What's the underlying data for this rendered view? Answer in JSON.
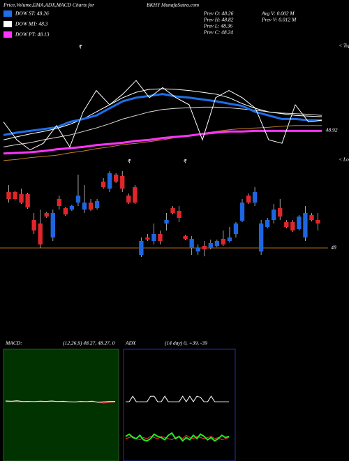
{
  "header": {
    "title": "Price,Volume,EMA,ADX,MACD Charts for",
    "symbol": "BKHY MunafaSutra.com"
  },
  "legend": [
    {
      "label": "DOW ST: 48.26",
      "color": "#1e6fe8"
    },
    {
      "label": "DOW MT: 48.3",
      "color": "#ffffff"
    },
    {
      "label": "DOW PT: 48.13",
      "color": "#ff33ff"
    }
  ],
  "prev_stats": [
    "Prev  O: 48.26",
    "Prev  H: 48.82",
    "Prev  L: 48.36",
    "Prev  C: 48.24",
    "Avg  V: 0.002  M",
    "Prev  V: 0.012  M"
  ],
  "chart_data": [
    {
      "type": "line",
      "annotations": [
        "₹",
        "< Tops"
      ],
      "ylim": [
        48.35,
        50.35
      ],
      "yticks": [
        {
          "value": 48.92,
          "label": "48.92"
        }
      ],
      "series": [
        {
          "color": "#c08020",
          "values": [
            48.41,
            48.43,
            48.46,
            48.48,
            48.5,
            48.54,
            48.57,
            48.61,
            48.64,
            48.68,
            48.7,
            48.73,
            48.76,
            48.8,
            48.83,
            48.87,
            48.9,
            48.93,
            48.95,
            48.96,
            48.97,
            48.99,
            49.0,
            49.0,
            49.0
          ]
        },
        {
          "color": "#ff33ff",
          "values": [
            48.53,
            48.54,
            48.55,
            48.57,
            48.6,
            48.62,
            48.64,
            48.67,
            48.69,
            48.71,
            48.74,
            48.76,
            48.79,
            48.81,
            48.83,
            48.86,
            48.88,
            48.9,
            48.9,
            48.91,
            48.91,
            48.91,
            48.91,
            48.91,
            48.91
          ]
        },
        {
          "color": "#dddddd",
          "values": [
            48.64,
            48.68,
            48.71,
            48.76,
            48.8,
            48.84,
            48.9,
            48.96,
            49.03,
            49.11,
            49.17,
            49.23,
            49.27,
            49.29,
            49.3,
            49.31,
            49.31,
            49.3,
            49.28,
            49.26,
            49.23,
            49.21,
            49.2,
            49.19,
            49.17
          ]
        },
        {
          "color": "#ffffff",
          "values": [
            48.76,
            48.81,
            48.86,
            48.9,
            48.95,
            49.02,
            49.11,
            49.23,
            49.35,
            49.47,
            49.56,
            49.61,
            49.62,
            49.61,
            49.59,
            49.56,
            49.53,
            49.47,
            49.37,
            49.29,
            49.23,
            49.2,
            49.17,
            49.16,
            49.15
          ]
        },
        {
          "color": "#1e6fe8",
          "values": [
            48.84,
            48.88,
            48.91,
            48.94,
            48.97,
            49.06,
            49.11,
            49.17,
            49.29,
            49.41,
            49.47,
            49.5,
            49.53,
            49.49,
            49.47,
            49.44,
            49.41,
            49.37,
            49.33,
            49.23,
            49.17,
            49.11,
            49.11,
            49.09,
            49.09
          ]
        },
        {
          "color": "#ffffff",
          "values": [
            49.06,
            48.76,
            48.59,
            48.7,
            49.0,
            48.64,
            49.23,
            49.59,
            49.35,
            49.53,
            49.76,
            49.47,
            49.64,
            49.47,
            49.35,
            48.76,
            49.47,
            49.59,
            49.47,
            49.29,
            48.76,
            48.7,
            49.35,
            49.06,
            49.09
          ]
        }
      ]
    },
    {
      "type": "candlestick",
      "annotations": [
        "₹",
        "₹",
        "< Lows"
      ],
      "ylim": [
        47.8,
        49.1
      ],
      "yticks": [
        48
      ],
      "grid_color": "#b06a10",
      "up_color": "#1e66e0",
      "down_color": "#e0262b",
      "open": [
        48.8,
        48.8,
        48.77,
        48.77,
        48.4,
        48.35,
        48.5,
        48.15,
        48.7,
        48.57,
        48.55,
        48.65,
        48.55,
        48.65,
        48.57,
        48.95,
        48.85,
        49.05,
        49.03,
        48.75,
        48.87,
        47.9,
        48.15,
        48.1,
        48.2,
        48.35,
        48.57,
        48.53,
        48.17,
        48.0,
        47.95,
        48.03,
        48.0,
        48.03,
        48.13,
        48.1,
        48.2,
        48.39,
        48.75,
        48.65,
        47.95,
        48.3,
        48.4,
        48.57,
        48.37,
        48.37,
        48.27,
        48.15,
        48.47,
        48.4
      ],
      "high": [
        48.9,
        48.82,
        48.85,
        48.79,
        48.5,
        48.55,
        48.52,
        48.55,
        48.75,
        48.59,
        48.62,
        49.05,
        48.9,
        48.7,
        48.7,
        49.0,
        49.1,
        49.07,
        49.1,
        48.78,
        48.9,
        48.15,
        48.2,
        48.35,
        48.25,
        48.5,
        48.6,
        48.6,
        48.19,
        48.17,
        48.05,
        48.1,
        48.12,
        48.12,
        48.25,
        48.3,
        48.37,
        48.7,
        48.78,
        48.87,
        48.4,
        48.43,
        48.63,
        48.7,
        48.4,
        48.4,
        48.47,
        48.6,
        48.5,
        48.5
      ],
      "low": [
        48.65,
        48.68,
        48.63,
        48.56,
        48.2,
        48.0,
        48.43,
        48.1,
        48.55,
        48.46,
        48.53,
        48.6,
        48.5,
        48.53,
        48.55,
        48.85,
        48.8,
        48.93,
        48.8,
        48.63,
        48.63,
        47.87,
        48.1,
        48.05,
        48.05,
        48.25,
        48.48,
        48.37,
        48.11,
        47.9,
        47.9,
        47.88,
        47.98,
        48.01,
        48.03,
        48.08,
        48.15,
        48.37,
        48.63,
        48.6,
        47.9,
        48.28,
        48.35,
        48.4,
        48.28,
        48.23,
        48.25,
        48.1,
        48.38,
        48.25
      ],
      "close": [
        48.7,
        48.7,
        48.65,
        48.58,
        48.25,
        48.05,
        48.45,
        48.5,
        48.6,
        48.48,
        48.6,
        48.75,
        48.65,
        48.55,
        48.67,
        48.87,
        49.07,
        48.95,
        48.85,
        48.65,
        48.65,
        48.1,
        48.12,
        48.2,
        48.1,
        48.4,
        48.5,
        48.43,
        48.13,
        48.13,
        48.0,
        47.98,
        48.07,
        48.1,
        48.05,
        48.15,
        48.35,
        48.65,
        48.65,
        48.8,
        48.35,
        48.4,
        48.55,
        48.45,
        48.3,
        48.25,
        48.45,
        48.5,
        48.4,
        48.35
      ]
    },
    {
      "type": "line",
      "title": "MACD:",
      "subtitle": "(12,26,9) 48.27, 48.27, 0",
      "ylim": [
        44,
        52
      ],
      "series": [
        {
          "color": "#ff4444",
          "values": [
            48.25,
            48.26,
            48.25,
            48.24,
            48.25,
            48.26,
            48.26,
            48.25,
            48.27,
            48.26,
            48.25,
            48.24,
            48.23,
            48.24,
            48.24,
            48.25,
            48.22,
            48.15,
            48.2,
            48.22
          ]
        },
        {
          "color": "#ffffff",
          "values": [
            48.3,
            48.28,
            48.31,
            48.26,
            48.27,
            48.25,
            48.29,
            48.27,
            48.3,
            48.26,
            48.28,
            48.24,
            48.22,
            48.27,
            48.25,
            48.29,
            48.2,
            48.24,
            48.27,
            48.27
          ]
        }
      ]
    },
    {
      "type": "line",
      "title": "ADX",
      "subtitle": "(14  day) 0, +39, -39",
      "ylim": [
        0,
        100
      ],
      "series": [
        {
          "color": "#ffffff",
          "values": [
            53,
            53,
            58,
            53,
            53,
            53,
            53,
            58,
            58,
            53,
            53,
            58,
            53,
            53,
            53,
            53,
            58,
            53,
            58,
            53,
            58,
            57,
            53,
            53,
            58,
            53,
            53,
            53,
            53,
            53
          ]
        },
        {
          "color": "#ff3030",
          "values": [
            20,
            21,
            22,
            20,
            19,
            21,
            20,
            22,
            21,
            20,
            22,
            21,
            20,
            19,
            21,
            22,
            20,
            23,
            21,
            20,
            22,
            21,
            20,
            21,
            22,
            20,
            21,
            19,
            20,
            21
          ]
        },
        {
          "color": "#22ee22",
          "values": [
            22,
            24,
            21,
            20,
            23,
            19,
            18,
            20,
            24,
            22,
            21,
            19,
            23,
            25,
            20,
            22,
            18,
            21,
            19,
            23,
            20,
            24,
            22,
            19,
            21,
            18,
            20,
            23,
            21,
            22
          ]
        }
      ]
    }
  ]
}
